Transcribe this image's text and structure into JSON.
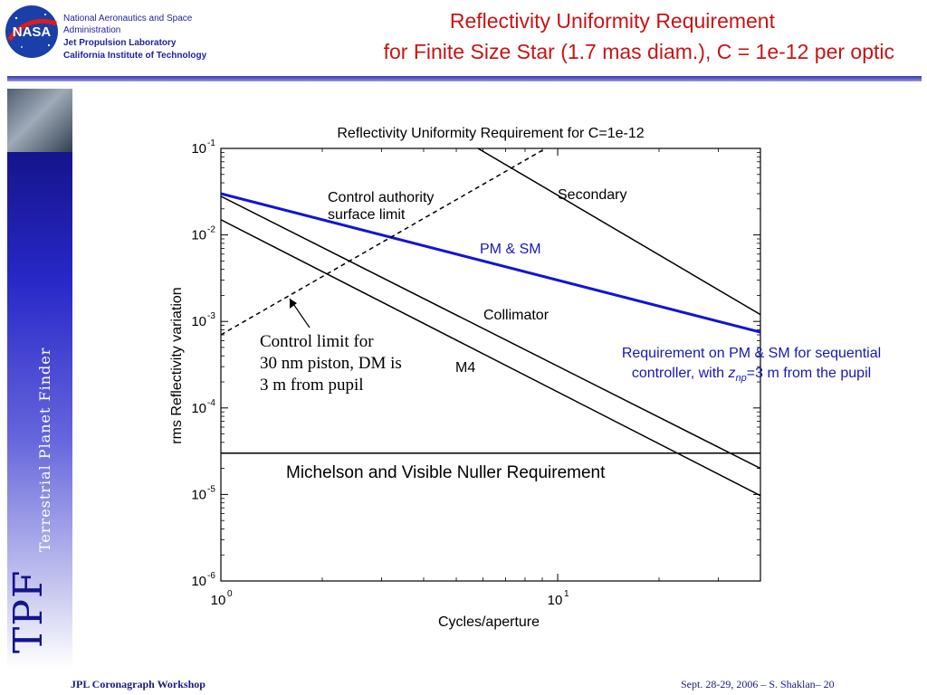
{
  "header": {
    "org_lines": [
      "National Aeronautics and Space",
      "Administration",
      "Jet Propulsion Laboratory",
      "California Institute of Technology"
    ],
    "logo_text": "NASA",
    "title_line1": "Reflectivity Uniformity Requirement",
    "title_line2": "for Finite Size Star (1.7 mas diam.),  C = 1e-12 per optic"
  },
  "sidebar": {
    "brand": "TPF",
    "brand_sub": "Terrestrial Planet Finder"
  },
  "footer": {
    "left": "JPL Coronagraph Workshop",
    "right": "Sept. 28-29, 2006  –   S. Shaklan– 20"
  },
  "colors": {
    "title": "#c81414",
    "brand_blue": "#1818b4",
    "pm_sm_line": "#1414d2"
  },
  "chart_data": {
    "type": "line",
    "title": "Reflectivity Uniformity Requirement for C=1e-12",
    "xlabel": "Cycles/aperture",
    "ylabel": "rms Reflectivity variation",
    "xscale": "log",
    "yscale": "log",
    "xlim": [
      1,
      40
    ],
    "ylim": [
      1e-06,
      0.1
    ],
    "x_ticks": [
      {
        "value": 1,
        "base": "10",
        "exp": "0"
      },
      {
        "value": 10,
        "base": "10",
        "exp": "1"
      }
    ],
    "y_ticks": [
      {
        "value": 0.1,
        "base": "10",
        "exp": "-1"
      },
      {
        "value": 0.01,
        "base": "10",
        "exp": "-2"
      },
      {
        "value": 0.001,
        "base": "10",
        "exp": "-3"
      },
      {
        "value": 0.0001,
        "base": "10",
        "exp": "-4"
      },
      {
        "value": 1e-05,
        "base": "10",
        "exp": "-5"
      },
      {
        "value": 1e-06,
        "base": "10",
        "exp": "-6"
      }
    ],
    "series": [
      {
        "name": "PM & SM",
        "color": "#1414d2",
        "style": "solid",
        "points": [
          [
            1,
            0.03
          ],
          [
            40,
            0.00075
          ]
        ]
      },
      {
        "name": "Secondary",
        "color": "#000000",
        "style": "solid",
        "points": [
          [
            5.8,
            0.1
          ],
          [
            40,
            0.0012
          ]
        ]
      },
      {
        "name": "Collimator",
        "color": "#000000",
        "style": "solid",
        "points": [
          [
            1,
            0.028
          ],
          [
            40,
            2e-05
          ]
        ]
      },
      {
        "name": "M4",
        "color": "#000000",
        "style": "solid",
        "points": [
          [
            1,
            0.015
          ],
          [
            40,
            9.7e-06
          ]
        ]
      },
      {
        "name": "Control authority surface limit",
        "color": "#000000",
        "style": "dashed",
        "points": [
          [
            1,
            0.0007
          ],
          [
            10,
            0.12
          ]
        ]
      },
      {
        "name": "Michelson and Visible Nuller Requirement",
        "color": "#000000",
        "style": "solid",
        "points": [
          [
            1,
            3e-05
          ],
          [
            40,
            3e-05
          ]
        ]
      }
    ],
    "annotations": {
      "control_authority": [
        "Control authority",
        "surface limit"
      ],
      "secondary": "Secondary",
      "pm_sm": "PM & SM",
      "collimator": "Collimator",
      "m4": "M4",
      "control_limit": [
        "Control limit for",
        "30 nm piston, DM is",
        "3 m from pupil"
      ],
      "nuller": "Michelson and Visible Nuller Requirement",
      "requirement_pre": "Requirement on PM & SM  for sequential controller, with ",
      "requirement_var": "z",
      "requirement_sub": "np",
      "requirement_post": "=3 m from the pupil"
    }
  }
}
